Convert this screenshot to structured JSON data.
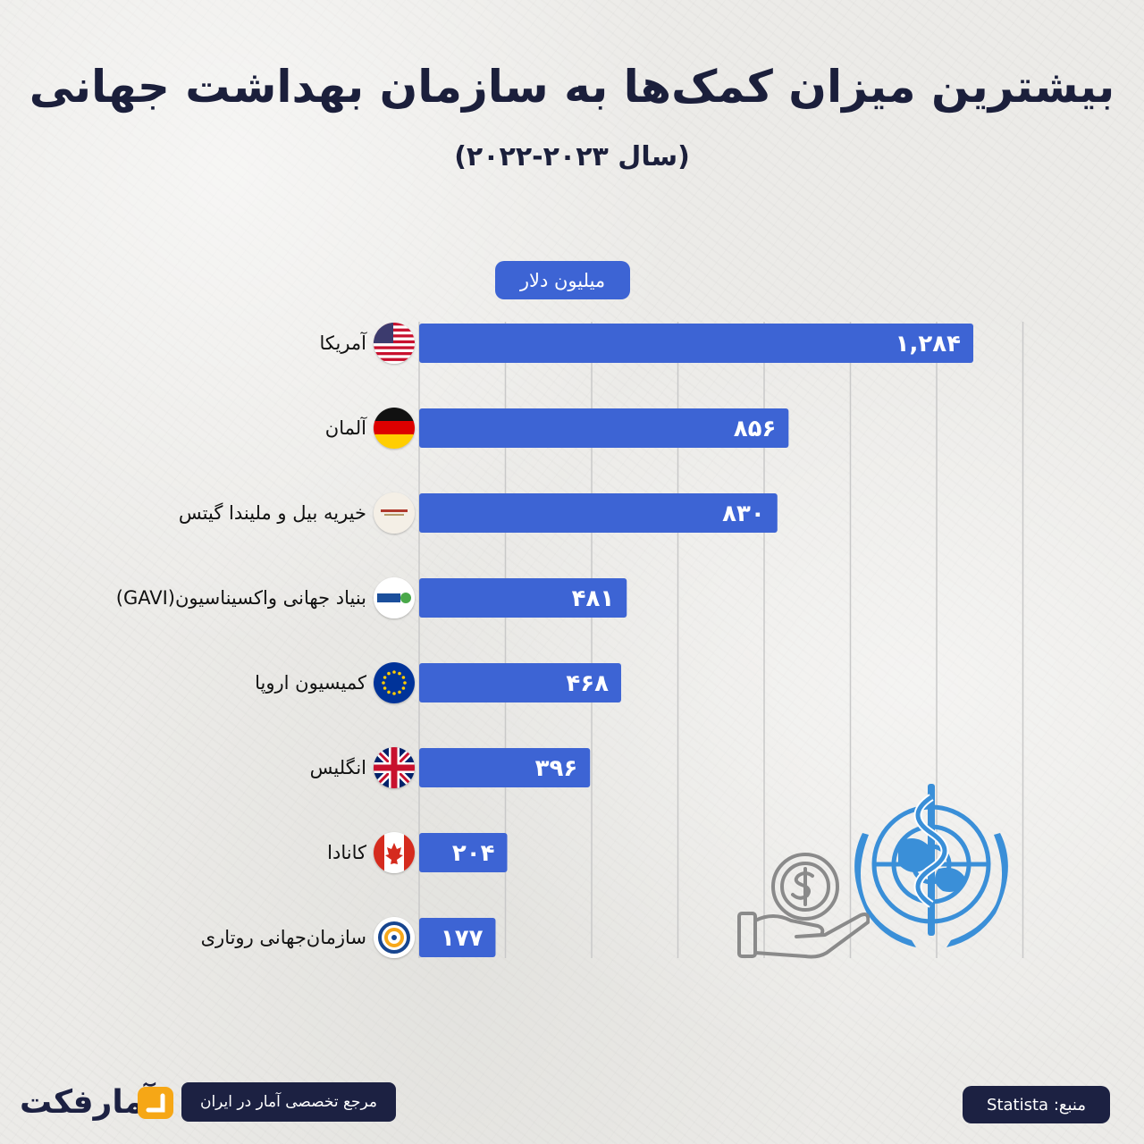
{
  "header": {
    "title": "بیشترین میزان کمک‌ها به سازمان بهداشت جهانی",
    "subtitle": "(سال ۲۰۲۳-۲۰۲۲)"
  },
  "chart_data": {
    "type": "bar",
    "orientation": "horizontal",
    "unit_label": "میلیون دلار",
    "categories": [
      "آمریکا",
      "آلمان",
      "خیریه بیل و ملیندا گیتس",
      "بنیاد جهانی واکسیناسیون(GAVI)",
      "کمیسیون اروپا",
      "انگلیس",
      "کانادا",
      "سازمان‌جهانی روتاری"
    ],
    "values": [
      1284,
      856,
      830,
      481,
      468,
      396,
      204,
      177
    ],
    "value_labels": [
      "۱,۲۸۴",
      "۸۵۶",
      "۸۳۰",
      "۴۸۱",
      "۴۶۸",
      "۳۹۶",
      "۲۰۴",
      "۱۷۷"
    ],
    "xlim": [
      0,
      1400
    ],
    "grid": true,
    "bar_color": "#3d64d4",
    "title": "بیشترین میزان کمک‌ها به سازمان بهداشت جهانی",
    "xlabel": "",
    "ylabel": ""
  },
  "icons": {
    "flags": [
      "us-flag-icon",
      "germany-flag-icon",
      "gates-foundation-logo-icon",
      "gavi-logo-icon",
      "eu-flag-icon",
      "uk-flag-icon",
      "canada-flag-icon",
      "rotary-logo-icon"
    ],
    "decor": [
      "who-emblem-icon",
      "money-hand-icon"
    ]
  },
  "footer": {
    "source": "منبع: Statista",
    "tagline": "مرجع تخصصی آمار در ایران",
    "brand": "آمارفکت"
  },
  "colors": {
    "accent": "#3d64d4",
    "dark": "#1c2142",
    "brand": "#f6a716",
    "who": "#3a8fd8"
  }
}
